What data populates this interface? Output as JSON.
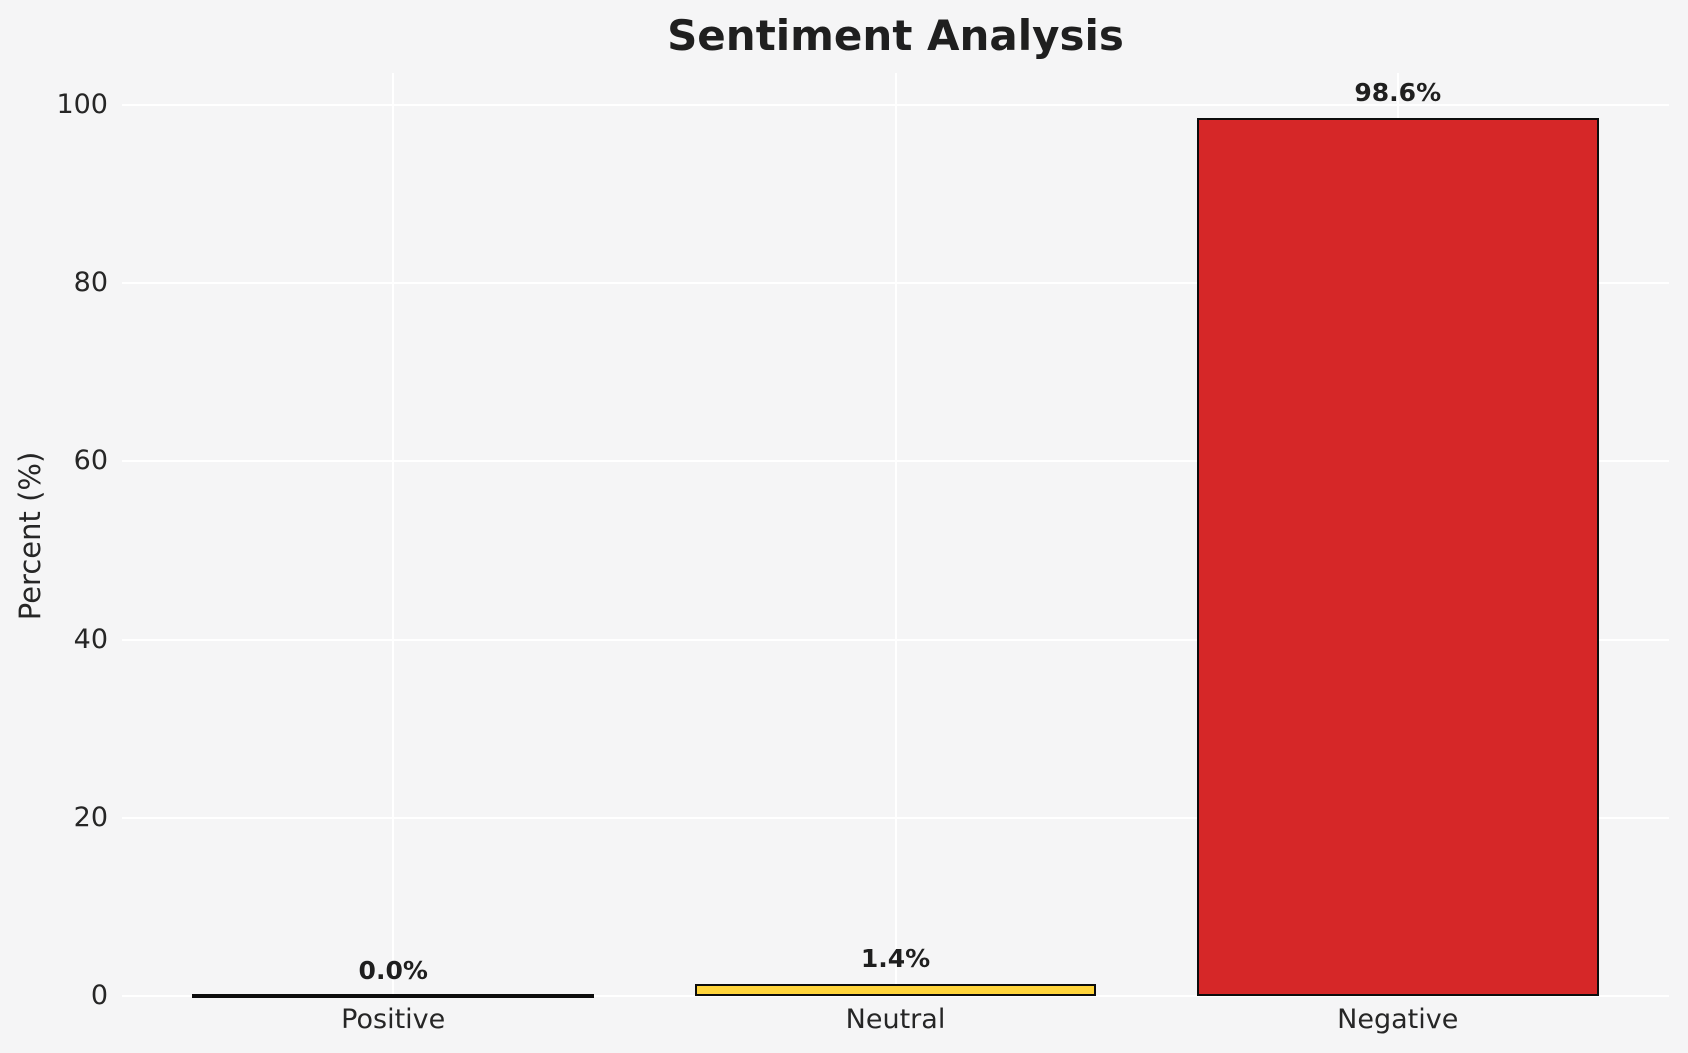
{
  "chart_data": {
    "type": "bar",
    "title": "Sentiment Analysis",
    "xlabel": "",
    "ylabel": "Percent (%)",
    "categories": [
      "Positive",
      "Neutral",
      "Negative"
    ],
    "values": [
      0.0,
      1.4,
      98.6
    ],
    "bar_labels": [
      "0.0%",
      "1.4%",
      "98.6%"
    ],
    "bar_colors": [
      null,
      "#ffd43b",
      "#d62728"
    ],
    "bar_edge_color": "#0d0d0d",
    "yticks": [
      "0",
      "20",
      "40",
      "60",
      "80",
      "100"
    ],
    "ytick_values": [
      0,
      20,
      40,
      60,
      80,
      100
    ],
    "ylim": [
      0,
      103.6
    ],
    "grid": true,
    "grid_color": "#ffffff",
    "background_color": "#f5f5f6",
    "text_color": "#262626",
    "legend": "none"
  }
}
